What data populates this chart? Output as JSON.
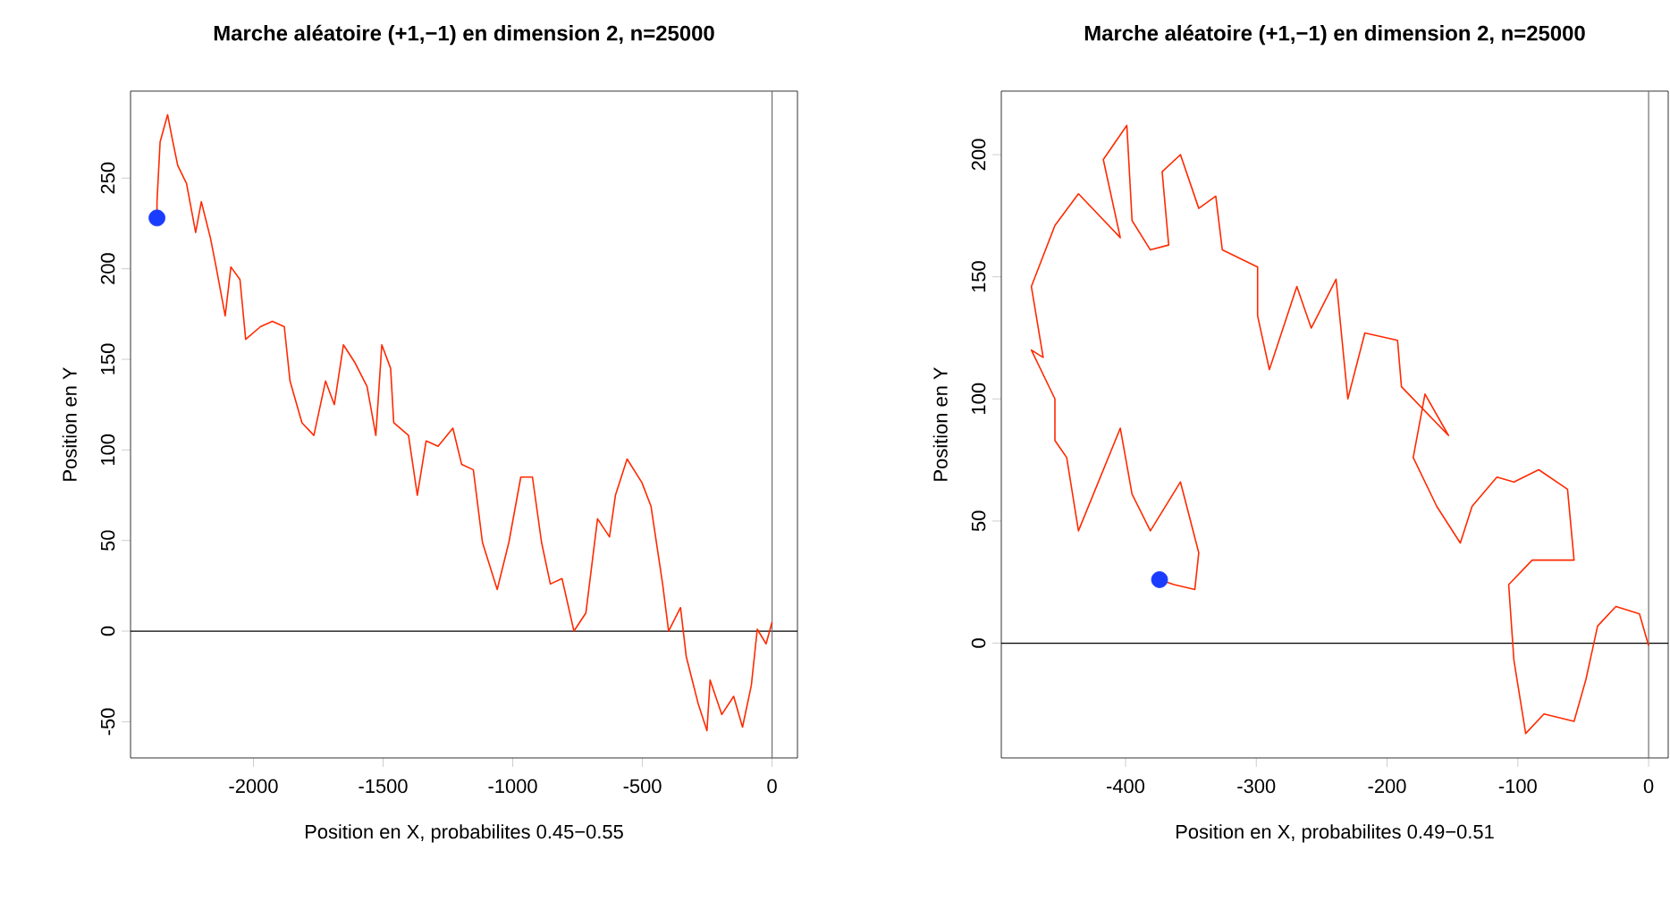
{
  "chart_data": [
    {
      "type": "line",
      "title": "Marche aléatoire (+1,−1) en dimension 2, n=25000",
      "xlabel": "Position en X, probabilites 0.45−0.55",
      "ylabel": "Position en Y",
      "xlim": [
        -2474,
        98
      ],
      "ylim": [
        -70,
        298
      ],
      "xticks": [
        -2000,
        -1500,
        -1000,
        -500,
        0
      ],
      "yticks": [
        -50,
        0,
        50,
        100,
        150,
        200,
        250
      ],
      "ref_lines": [
        {
          "axis": "y",
          "value": 0,
          "color": "#000000"
        },
        {
          "axis": "x",
          "value": 0,
          "color": "#707070"
        }
      ],
      "series": [
        {
          "color": "#ff2a00",
          "marker": "none",
          "x": [
            0,
            -23,
            -57,
            -80,
            -114,
            -148,
            -194,
            -239,
            -251,
            -285,
            -331,
            -353,
            -399,
            -422,
            -467,
            -502,
            -559,
            -604,
            -627,
            -673,
            -718,
            -764,
            -810,
            -855,
            -889,
            -924,
            -969,
            -1015,
            -1060,
            -1117,
            -1152,
            -1197,
            -1231,
            -1288,
            -1334,
            -1368,
            -1402,
            -1459,
            -1471,
            -1505,
            -1528,
            -1562,
            -1608,
            -1653,
            -1688,
            -1722,
            -1767,
            -1813,
            -1859,
            -1881,
            -1927,
            -1973,
            -2030,
            -2052,
            -2087,
            -2109,
            -2144,
            -2166,
            -2201,
            -2223,
            -2258,
            -2292,
            -2315,
            -2331,
            -2360,
            -2372,
            -2372
          ],
          "values": [
            5,
            -7,
            1,
            -30,
            -53,
            -36,
            -46,
            -27,
            -55,
            -40,
            -14,
            13,
            0,
            26,
            69,
            82,
            95,
            75,
            52,
            62,
            10,
            0,
            29,
            26,
            49,
            85,
            85,
            49,
            23,
            49,
            89,
            92,
            112,
            102,
            105,
            75,
            108,
            115,
            145,
            158,
            108,
            135,
            148,
            158,
            125,
            138,
            108,
            115,
            138,
            168,
            171,
            168,
            161,
            194,
            201,
            174,
            201,
            217,
            237,
            220,
            247,
            257,
            273,
            285,
            270,
            237,
            228
          ]
        },
        {
          "type": "scatter",
          "color": "#1a3cff",
          "marker": "circle",
          "x": [
            -2372
          ],
          "values": [
            228
          ]
        }
      ]
    },
    {
      "type": "line",
      "title": "Marche aléatoire (+1,−1) en dimension 2, n=25000",
      "xlabel": "Position en X, probabilites 0.49−0.51",
      "ylabel": "Position en Y",
      "xlim": [
        -495,
        15
      ],
      "ylim": [
        -47,
        226
      ],
      "xticks": [
        -400,
        -300,
        -200,
        -100,
        0
      ],
      "yticks": [
        0,
        50,
        100,
        150,
        200
      ],
      "ref_lines": [
        {
          "axis": "y",
          "value": 0,
          "color": "#000000"
        },
        {
          "axis": "x",
          "value": 0,
          "color": "#707070"
        }
      ],
      "series": [
        {
          "color": "#ff2a00",
          "marker": "none",
          "x": [
            0,
            -7,
            -25,
            -39,
            -48,
            -57,
            -80,
            -94,
            -103,
            -107,
            -89,
            -57,
            -62,
            -84,
            -103,
            -116,
            -135,
            -144,
            -162,
            -180,
            -171,
            -153,
            -189,
            -192,
            -217,
            -230,
            -239,
            -258,
            -269,
            -290,
            -299,
            -299,
            -326,
            -331,
            -344,
            -358,
            -372,
            -367,
            -381,
            -395,
            -399,
            -417,
            -404,
            -436,
            -454,
            -472,
            -463,
            -472,
            -454,
            -454,
            -445,
            -436,
            -404,
            -395,
            -381,
            -358,
            -344,
            -347,
            -363,
            -374
          ],
          "values": [
            -1,
            12,
            15,
            7,
            -15,
            -32,
            -29,
            -37,
            -7,
            24,
            34,
            34,
            63,
            71,
            66,
            68,
            56,
            41,
            56,
            76,
            102,
            85,
            105,
            124,
            127,
            100,
            149,
            129,
            146,
            112,
            134,
            154,
            161,
            183,
            178,
            200,
            193,
            163,
            161,
            173,
            212,
            198,
            166,
            184,
            171,
            146,
            117,
            120,
            100,
            83,
            76,
            46,
            88,
            61,
            46,
            66,
            37,
            22,
            24,
            26
          ]
        },
        {
          "type": "scatter",
          "color": "#1a3cff",
          "marker": "circle",
          "x": [
            -374
          ],
          "values": [
            26
          ]
        }
      ]
    }
  ]
}
